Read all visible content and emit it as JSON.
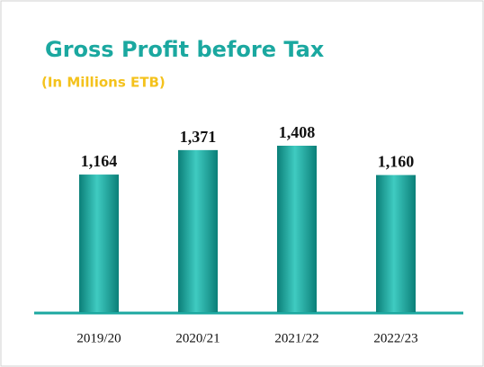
{
  "chart_data": {
    "type": "bar",
    "title": "Gross Profit before Tax",
    "subtitle": "(In Millions ETB)",
    "categories": [
      "2019/20",
      "2020/21",
      "2021/22",
      "2022/23"
    ],
    "values": [
      1164,
      1371,
      1408,
      1160
    ],
    "value_labels": [
      "1,164",
      "1,371",
      "1,408",
      "1,160"
    ],
    "color": "#1ba8a0"
  }
}
